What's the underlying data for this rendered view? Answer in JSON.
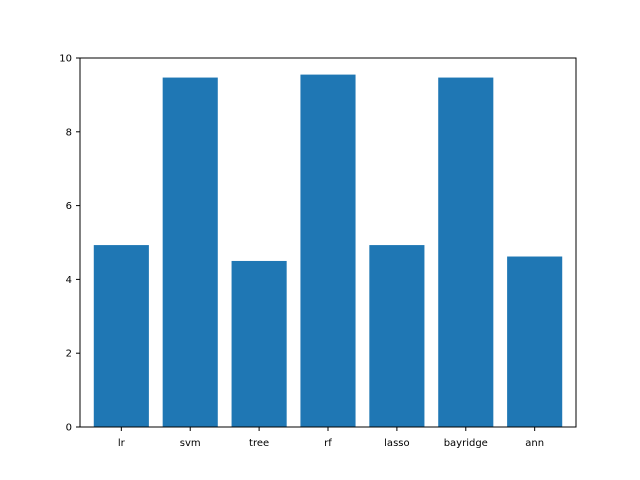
{
  "chart_data": {
    "type": "bar",
    "categories": [
      "lr",
      "svm",
      "tree",
      "rf",
      "lasso",
      "bayridge",
      "ann"
    ],
    "values": [
      4.93,
      9.47,
      4.5,
      9.55,
      4.93,
      9.47,
      4.62
    ],
    "y_ticks": [
      "0",
      "2",
      "4",
      "6",
      "8",
      "10"
    ],
    "title": "",
    "xlabel": "",
    "ylabel": "",
    "ylim": [
      0,
      10
    ],
    "grid": false,
    "bar_color": "#1f77b4"
  }
}
